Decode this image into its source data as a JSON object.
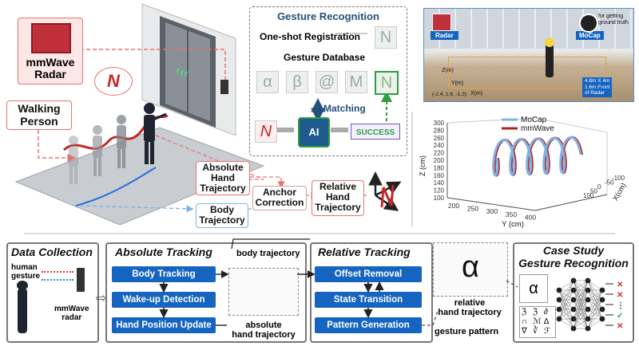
{
  "top_left": {
    "radar_label": "mmWave\nRadar",
    "walker_label": "Walking\nPerson",
    "thought_glyph": "N",
    "abs_hand": "Absolute\nHand\nTrajectory",
    "body_traj": "Body\nTrajectory",
    "anchor": "Anchor\nCorrection",
    "rel_hand": "Relative\nHand\nTrajectory"
  },
  "gesture_recognition": {
    "title": "Gesture Recognition",
    "registration": "One-shot Registration",
    "registration_glyph": "N",
    "database": "Gesture Database",
    "db_glyphs": [
      "α",
      "β",
      "@",
      "M",
      "N"
    ],
    "matching": "Matching",
    "ai": "AI",
    "success": "SUCCESS",
    "input_glyph": "N"
  },
  "photo": {
    "radar_tag": "Radar",
    "mocap_tag": "MoCap",
    "ground_truth": "for getting\nground truth",
    "area_note": "4.8m X 4m\n1.6m Front\nof Radar",
    "z_axis": "Z(m)",
    "y_axis": "Y(m)",
    "x_axis": "X(m)",
    "origin": "(-2.4, 1.6, -1.3)"
  },
  "chart_data": {
    "type": "line",
    "legend": [
      "MoCap",
      "mmWave"
    ],
    "colors": [
      "#7fb2e5",
      "#b22222"
    ],
    "z_label": "Z (cm)",
    "y_label": "Y (cm)",
    "x_label": "X(cm)",
    "z_ticks": [
      100,
      120,
      140,
      160,
      180,
      200,
      220,
      240,
      260,
      280,
      300
    ],
    "y_ticks": [
      200,
      250,
      300,
      350,
      400
    ],
    "x_ticks": [
      -100,
      -50,
      0,
      50,
      100
    ]
  },
  "bottom": {
    "data_collection": "Data Collection",
    "human_gesture": "human\ngesture",
    "mmwave_radar": "mmWave\nradar",
    "absolute_tracking": "Absolute Tracking",
    "abs_steps": [
      "Body Tracking",
      "Wake-up Detection",
      "Hand Position Update"
    ],
    "body_trajectory": "body trajectory",
    "absolute_hand": "absolute\nhand trajectory",
    "relative_tracking": "Relative Tracking",
    "rel_steps": [
      "Offset Removal",
      "State Transition",
      "Pattern Generation"
    ],
    "relative_hand": "relative\nhand trajectory",
    "gesture_pattern": "gesture pattern",
    "case_study": "Case Study\nGesture Recognition",
    "case_input_glyph": "α",
    "small_glyphs": [
      "ℨ",
      "ℨ",
      "∂",
      "∩",
      "ℳ",
      "∆",
      "∇",
      "∛",
      "ℱ"
    ]
  }
}
